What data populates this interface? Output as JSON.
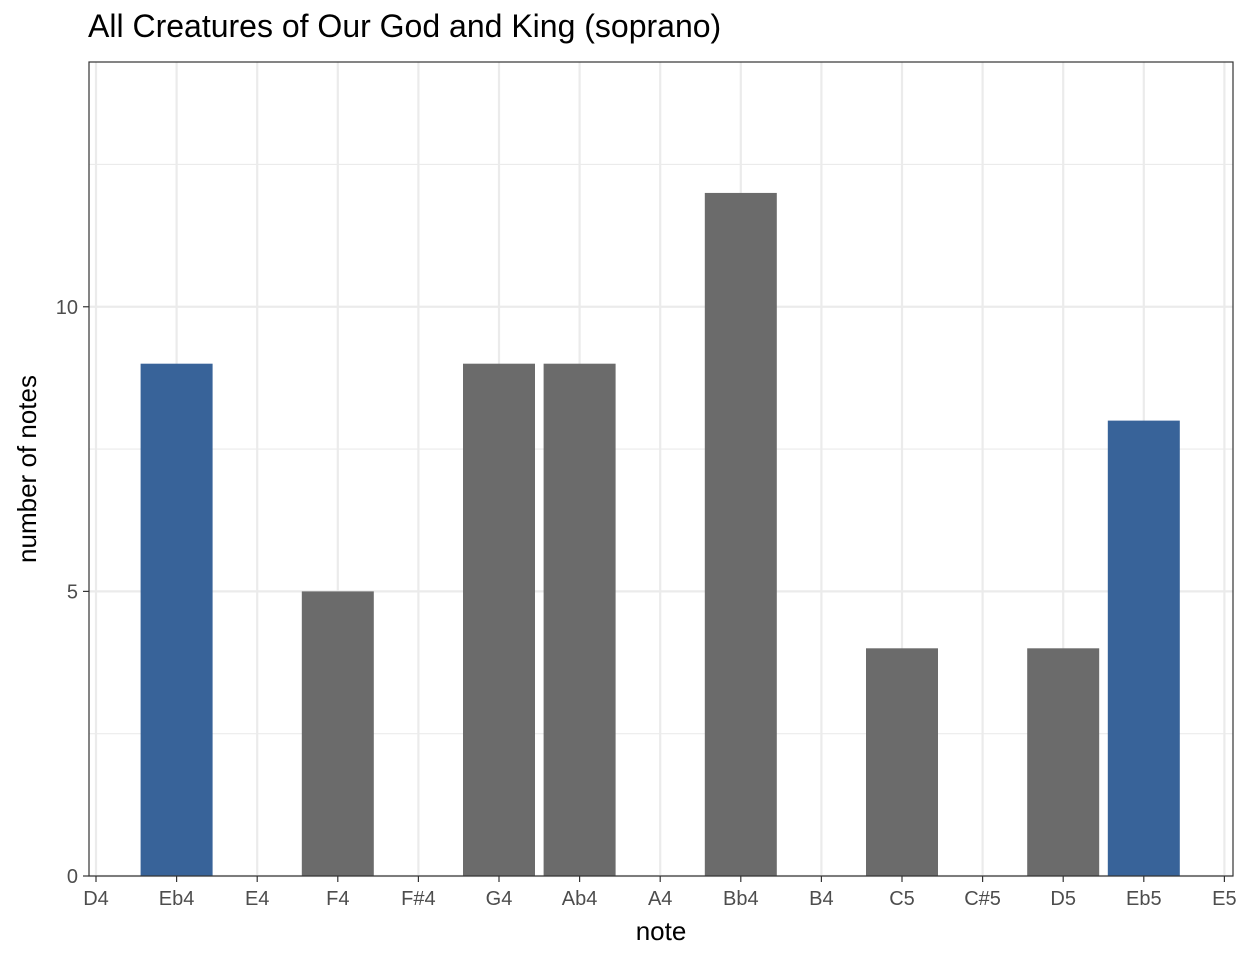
{
  "chart_data": {
    "type": "bar",
    "title": "All Creatures of Our God and King (soprano)",
    "xlabel": "note",
    "ylabel": "number of notes",
    "categories": [
      "D4",
      "Eb4",
      "E4",
      "F4",
      "F#4",
      "G4",
      "Ab4",
      "A4",
      "Bb4",
      "B4",
      "C5",
      "C#5",
      "D5",
      "Eb5",
      "E5"
    ],
    "values": [
      0,
      9,
      0,
      5,
      0,
      9,
      9,
      0,
      12,
      0,
      4,
      0,
      4,
      8,
      0
    ],
    "highlighted": [
      "Eb4",
      "Eb5"
    ],
    "ylim": [
      0,
      14.3
    ],
    "yticks": [
      0,
      5,
      10
    ],
    "grid": true,
    "colors": {
      "bar": "#6b6b6b",
      "highlight": "#386399",
      "grid": "#ebebeb",
      "panel_border": "#333333"
    }
  }
}
